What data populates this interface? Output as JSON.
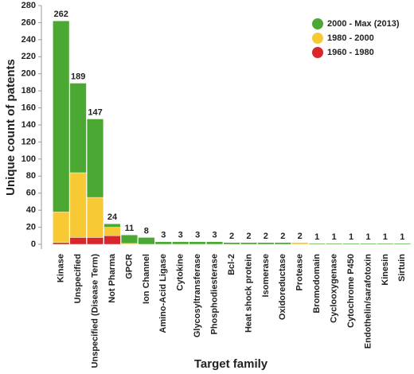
{
  "chart_data": {
    "type": "stacked-bar",
    "x_label": "Target family",
    "y_label": "Unique count of patents",
    "categories": [
      "Kinase",
      "Unspecified",
      "Unspecified (Disease Term)",
      "Not Pharma",
      "GPCR",
      "Ion Channel",
      "Amino-Acid Ligase",
      "Cytokine",
      "Glycosyltransferase",
      "Phosphodiesterase",
      "Bcl-2",
      "Heat shock protein",
      "Isomerase",
      "Oxidoreductase",
      "Protease",
      "Bromodomain",
      "Cyclooxygenase",
      "Cytochrome P450",
      "Endothelin/sarafotoxin",
      "Kinesin",
      "Sirtuin"
    ],
    "series": [
      {
        "name": "2000 - Max (2013)",
        "color": "#4ba832",
        "values": [
          224,
          105,
          92,
          4,
          10,
          8,
          3,
          3,
          3,
          3,
          2,
          2,
          2,
          2,
          0,
          1,
          1,
          1,
          1,
          1,
          1
        ]
      },
      {
        "name": "1980 - 2000",
        "color": "#f6c935",
        "values": [
          36,
          76,
          47,
          10,
          1,
          0,
          0,
          0,
          0,
          0,
          0,
          0,
          0,
          0,
          2,
          0,
          0,
          0,
          0,
          0,
          0
        ]
      },
      {
        "name": "1960 - 1980",
        "color": "#d9262b",
        "values": [
          2,
          8,
          8,
          10,
          0,
          0,
          0,
          0,
          0,
          0,
          0,
          0,
          0,
          0,
          0,
          0,
          0,
          0,
          0,
          0,
          0
        ]
      }
    ],
    "totals": [
      262,
      189,
      147,
      24,
      11,
      8,
      3,
      3,
      3,
      3,
      2,
      2,
      2,
      2,
      2,
      1,
      1,
      1,
      1,
      1,
      1
    ],
    "ylim": [
      0,
      280
    ],
    "yticks": [
      0,
      20,
      40,
      60,
      80,
      100,
      120,
      140,
      160,
      180,
      200,
      220,
      240,
      260,
      280
    ],
    "grid": false,
    "legend": "top-right"
  }
}
